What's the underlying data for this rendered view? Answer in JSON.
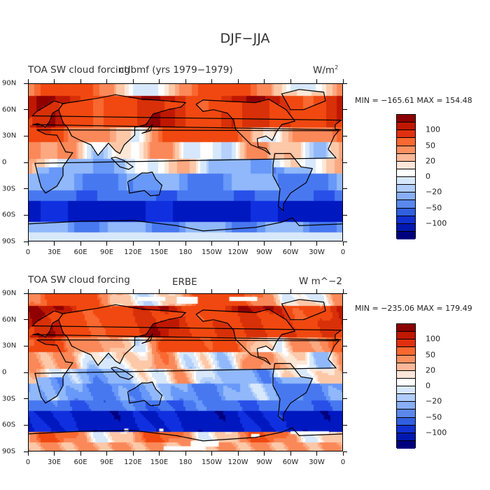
{
  "figure_title": "DJF−JJA",
  "chart_data": [
    {
      "type": "heatmap",
      "left_label": "TOA SW cloud forcing",
      "center_label": "ctlbmf (yrs 1979−1979)",
      "units": "W/m",
      "units_sup": "2",
      "stats": "MIN = −165.61  MAX = 154.48",
      "min": -165.61,
      "max": 154.48,
      "xlabel_ticks": [
        "0",
        "30E",
        "60E",
        "90E",
        "120E",
        "150E",
        "180",
        "150W",
        "120W",
        "90W",
        "60W",
        "30W",
        "0"
      ],
      "ylabel_ticks": [
        "90N",
        "60N",
        "30N",
        "0",
        "30S",
        "60S",
        "90S"
      ],
      "lon_range": [
        0,
        360
      ],
      "lat_range": [
        -90,
        90
      ],
      "colorbar_labels": [
        "100",
        "50",
        "20",
        "0",
        "−20",
        "−50",
        "−100"
      ],
      "colorbar_levels": [
        -150,
        -120,
        -100,
        -80,
        -50,
        -40,
        -20,
        -15,
        -5,
        0,
        5,
        15,
        20,
        40,
        50,
        80,
        100,
        120,
        150
      ]
    },
    {
      "type": "heatmap",
      "left_label": "TOA SW cloud forcing",
      "center_label": "ERBE",
      "units": "W m^−2",
      "units_sup": "",
      "stats": "MIN = −235.06  MAX = 179.49",
      "min": -235.06,
      "max": 179.49,
      "xlabel_ticks": [
        "0",
        "30E",
        "60E",
        "90E",
        "120E",
        "150E",
        "180",
        "150W",
        "120W",
        "90W",
        "60W",
        "30W",
        "0"
      ],
      "ylabel_ticks": [
        "90N",
        "60N",
        "30N",
        "0",
        "30S",
        "60S",
        "90S"
      ],
      "lon_range": [
        0,
        360
      ],
      "lat_range": [
        -90,
        90
      ],
      "colorbar_labels": [
        "100",
        "50",
        "20",
        "0",
        "−20",
        "−50",
        "−100"
      ],
      "colorbar_levels": [
        -150,
        -120,
        -100,
        -80,
        -50,
        -40,
        -20,
        -15,
        -5,
        0,
        5,
        15,
        20,
        40,
        50,
        80,
        100,
        120,
        150
      ]
    }
  ],
  "colors": {
    "palette": [
      "#000080",
      "#0018c0",
      "#1030e0",
      "#2850e8",
      "#4878f0",
      "#6898f8",
      "#90b8fa",
      "#b4d0fb",
      "#d8e8fc",
      "#ffffff",
      "#fde8d8",
      "#fdc8a8",
      "#fca880",
      "#fb8858",
      "#f86830",
      "#f04810",
      "#d83008",
      "#c01800",
      "#900000"
    ],
    "colorbar_colors": [
      "#8b0000",
      "#c01800",
      "#e03010",
      "#f86830",
      "#fb9060",
      "#fdb898",
      "#fde6d8",
      "#ffffff",
      "#d8e8fc",
      "#b0ccfb",
      "#88aef5",
      "#5a88ec",
      "#3060e0",
      "#1030d0",
      "#0018b0",
      "#00007f"
    ]
  }
}
